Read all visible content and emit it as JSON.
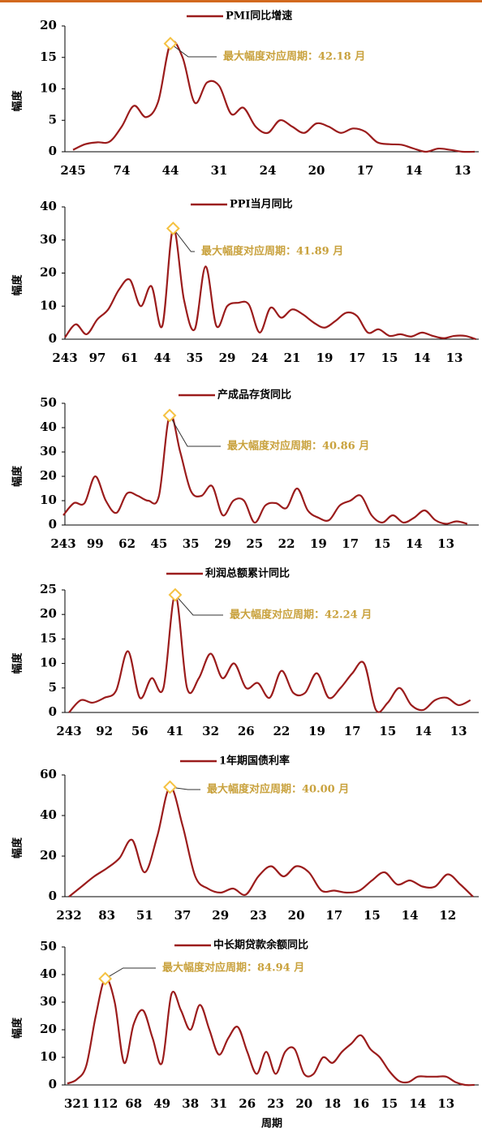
{
  "chart_data": [
    {
      "type": "line",
      "ylabel": "幅度",
      "annotation": "最大幅度对应周期：42.18 月",
      "annotation_color": "#c9a23e",
      "marker_color": "#f5c242",
      "categories": [
        "245",
        null,
        null,
        null,
        "74",
        null,
        null,
        null,
        "44",
        null,
        null,
        null,
        "31",
        null,
        null,
        null,
        "24",
        null,
        null,
        null,
        "20",
        null,
        null,
        null,
        "17",
        null,
        null,
        null,
        "14",
        null,
        null,
        null,
        "13",
        null
      ],
      "series": [
        {
          "name": "PMI同比增速",
          "color": "#9b1c1c",
          "values": [
            0.3,
            1.2,
            1.5,
            1.6,
            4,
            7.3,
            5.5,
            8,
            17.2,
            15,
            7.8,
            11,
            10.5,
            6,
            7,
            4,
            3,
            5,
            4,
            3,
            4.5,
            4,
            3,
            3.7,
            3.2,
            1.5,
            1.2,
            1.1,
            0.5,
            0,
            0.5,
            0.3,
            0,
            0
          ]
        }
      ],
      "ylim": [
        0,
        20
      ],
      "yticks": [
        0,
        5,
        10,
        15,
        20
      ]
    },
    {
      "type": "line",
      "ylabel": "幅度",
      "annotation": "最大幅度对应周期：41.89 月",
      "annotation_color": "#c9a23e",
      "marker_color": "#f5c242",
      "categories": [
        "243",
        null,
        null,
        "97",
        null,
        null,
        "61",
        null,
        null,
        "44",
        null,
        null,
        "35",
        null,
        null,
        "29",
        null,
        null,
        "24",
        null,
        null,
        "21",
        null,
        null,
        "19",
        null,
        null,
        "17",
        null,
        null,
        "15",
        null,
        null,
        "14",
        null,
        null,
        "13",
        null,
        null
      ],
      "series": [
        {
          "name": "PPI当月同比",
          "color": "#9b1c1c",
          "values": [
            0.5,
            4.5,
            1.5,
            6,
            9,
            15,
            18,
            10,
            16,
            4,
            33.5,
            12,
            3,
            22,
            4,
            10,
            11,
            10.5,
            2,
            9.5,
            6.5,
            9,
            7.5,
            5,
            3.5,
            5.5,
            8,
            7,
            2,
            3,
            1,
            1.5,
            0.8,
            2,
            1,
            0.3,
            1,
            1,
            0
          ]
        }
      ],
      "ylim": [
        0,
        40
      ],
      "yticks": [
        0,
        10,
        20,
        30,
        40
      ]
    },
    {
      "type": "line",
      "ylabel": "幅度",
      "annotation": "最大幅度对应周期：40.86 月",
      "annotation_color": "#c9a23e",
      "marker_color": "#f5c242",
      "categories": [
        "243",
        null,
        null,
        "99",
        null,
        null,
        "62",
        null,
        null,
        "45",
        null,
        null,
        "35",
        null,
        null,
        "29",
        null,
        null,
        "25",
        null,
        null,
        "22",
        null,
        null,
        "19",
        null,
        null,
        "17",
        null,
        null,
        "15",
        null,
        null,
        "14",
        null,
        null,
        "13",
        null,
        null
      ],
      "series": [
        {
          "name": "产成品存货同比",
          "color": "#9b1c1c",
          "values": [
            4,
            9,
            9,
            20,
            10,
            5,
            13,
            12,
            10,
            12,
            45,
            30,
            14,
            12,
            16,
            4,
            10,
            10,
            1,
            8,
            9,
            7,
            15,
            6,
            3,
            2,
            8,
            10,
            12,
            4,
            1,
            4,
            1,
            3,
            6,
            2,
            0.5,
            1.5,
            0.5
          ]
        }
      ],
      "ylim": [
        0,
        50
      ],
      "yticks": [
        0,
        10,
        20,
        30,
        40,
        50
      ]
    },
    {
      "type": "line",
      "ylabel": "幅度",
      "annotation": "最大幅度对应周期：42.24 月",
      "annotation_color": "#c9a23e",
      "marker_color": "#f5c242",
      "categories": [
        "243",
        null,
        null,
        "92",
        null,
        null,
        "56",
        null,
        null,
        "41",
        null,
        null,
        "32",
        null,
        null,
        "26",
        null,
        null,
        "22",
        null,
        null,
        "19",
        null,
        null,
        "17",
        null,
        null,
        "15",
        null,
        null,
        "14",
        null,
        null,
        "13",
        null
      ],
      "series": [
        {
          "name": "利润总额累计同比",
          "color": "#9b1c1c",
          "values": [
            0,
            2.5,
            2,
            3,
            4.5,
            12.5,
            3,
            7,
            5,
            24,
            5,
            7,
            12,
            7,
            10,
            5,
            6,
            3,
            8.5,
            4,
            4,
            8,
            3,
            5,
            8,
            10,
            0.5,
            2,
            5,
            1.5,
            0.5,
            2.5,
            3,
            1.5,
            2.5
          ]
        }
      ],
      "ylim": [
        0,
        25
      ],
      "yticks": [
        0,
        5,
        10,
        15,
        20,
        25
      ]
    },
    {
      "type": "line",
      "ylabel": "幅度",
      "annotation": "最大幅度对应周期：40.00 月",
      "annotation_color": "#c9a23e",
      "marker_color": "#f5c242",
      "categories": [
        "232",
        null,
        null,
        "83",
        null,
        null,
        "51",
        null,
        null,
        "37",
        null,
        null,
        "29",
        null,
        null,
        "23",
        null,
        null,
        "20",
        null,
        null,
        "17",
        null,
        null,
        "15",
        null,
        null,
        "14",
        null,
        null,
        "12",
        null,
        null
      ],
      "series": [
        {
          "name": "1年期国债利率",
          "color": "#9b1c1c",
          "values": [
            0,
            5,
            10,
            14,
            19,
            28,
            12,
            30,
            54,
            35,
            10,
            4,
            2,
            4,
            1,
            10,
            15,
            10,
            15,
            12,
            3,
            3,
            2,
            3,
            8,
            12,
            6,
            8,
            5,
            5,
            11,
            6,
            0
          ]
        }
      ],
      "ylim": [
        0,
        60
      ],
      "yticks": [
        0,
        20,
        40,
        60
      ]
    },
    {
      "type": "line",
      "ylabel": "幅度",
      "xlabel": "周期",
      "annotation": "最大幅度对应周期：84.94 月",
      "annotation_color": "#c9a23e",
      "marker_color": "#f5c242",
      "categories": [
        null,
        "321",
        null,
        null,
        "112",
        null,
        null,
        "68",
        null,
        null,
        "49",
        null,
        null,
        "38",
        null,
        null,
        "31",
        null,
        null,
        "26",
        null,
        null,
        "23",
        null,
        null,
        "20",
        null,
        null,
        "18",
        null,
        null,
        "16",
        null,
        null,
        "15",
        null,
        null,
        "14",
        null,
        null,
        "13",
        null,
        null,
        null
      ],
      "series": [
        {
          "name": "中长期贷款余额同比",
          "color": "#9b1c1c",
          "values": [
            0.5,
            2,
            7,
            25,
            38.5,
            30,
            8,
            22,
            27,
            17,
            8,
            33,
            27,
            20,
            29,
            20,
            11,
            17,
            21,
            12,
            4,
            12,
            4,
            12,
            13,
            4,
            4,
            10,
            8,
            12,
            15,
            18,
            13,
            10,
            5,
            1.5,
            1,
            3,
            3,
            3,
            3,
            1,
            0,
            0
          ]
        }
      ],
      "ylim": [
        0,
        50
      ],
      "yticks": [
        0,
        10,
        20,
        30,
        40,
        50
      ]
    }
  ]
}
